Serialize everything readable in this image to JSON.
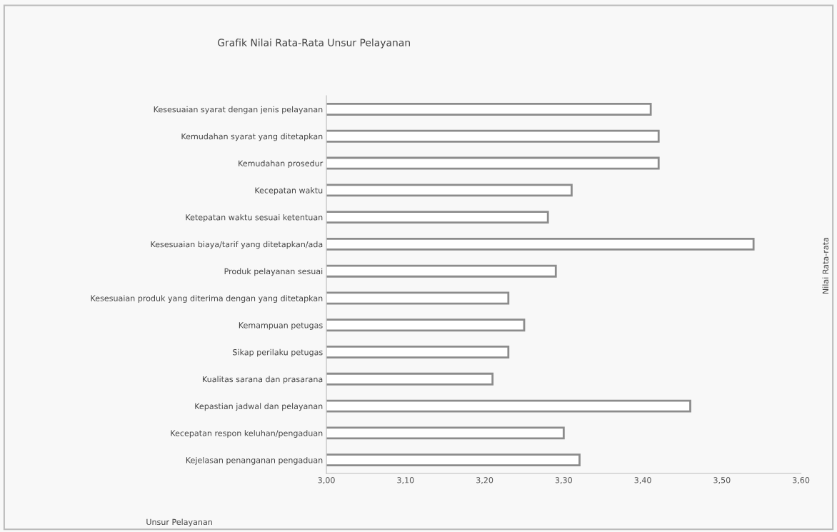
{
  "chart_data": {
    "type": "bar",
    "orientation": "horizontal",
    "title": "Grafik Nilai Rata-Rata Unsur Pelayanan",
    "xlabel": "Unsur Pelayanan",
    "ylabel": "Nilai Rata-rata",
    "categories": [
      "Kesesuaian syarat dengan jenis pelayanan",
      "Kemudahan syarat yang ditetapkan",
      "Kemudahan prosedur",
      "Kecepatan waktu",
      "Ketepatan waktu sesuai ketentuan",
      "Kesesuaian biaya/tarif yang ditetapkan/ada",
      "Produk pelayanan sesuai",
      "Kesesuaian produk yang diterima dengan yang ditetapkan",
      "Kemampuan petugas",
      "Sikap perilaku petugas",
      "Kualitas sarana dan prasarana",
      "Kepastian jadwal dan pelayanan",
      "Kecepatan respon keluhan/pengaduan",
      "Kejelasan penanganan pengaduan"
    ],
    "values": [
      3.41,
      3.42,
      3.42,
      3.31,
      3.28,
      3.54,
      3.29,
      3.23,
      3.25,
      3.23,
      3.21,
      3.46,
      3.3,
      3.32
    ],
    "color": "#ffffff",
    "xlim": [
      3.0,
      3.6
    ],
    "xticks": [
      {
        "value": 3.0,
        "label": "3,00"
      },
      {
        "value": 3.1,
        "label": "3,10"
      },
      {
        "value": 3.2,
        "label": "3,20"
      },
      {
        "value": 3.3,
        "label": "3,30"
      },
      {
        "value": 3.4,
        "label": "3,40"
      },
      {
        "value": 3.5,
        "label": "3,50"
      },
      {
        "value": 3.6,
        "label": "3,60"
      }
    ],
    "grid": false,
    "legend": false
  }
}
